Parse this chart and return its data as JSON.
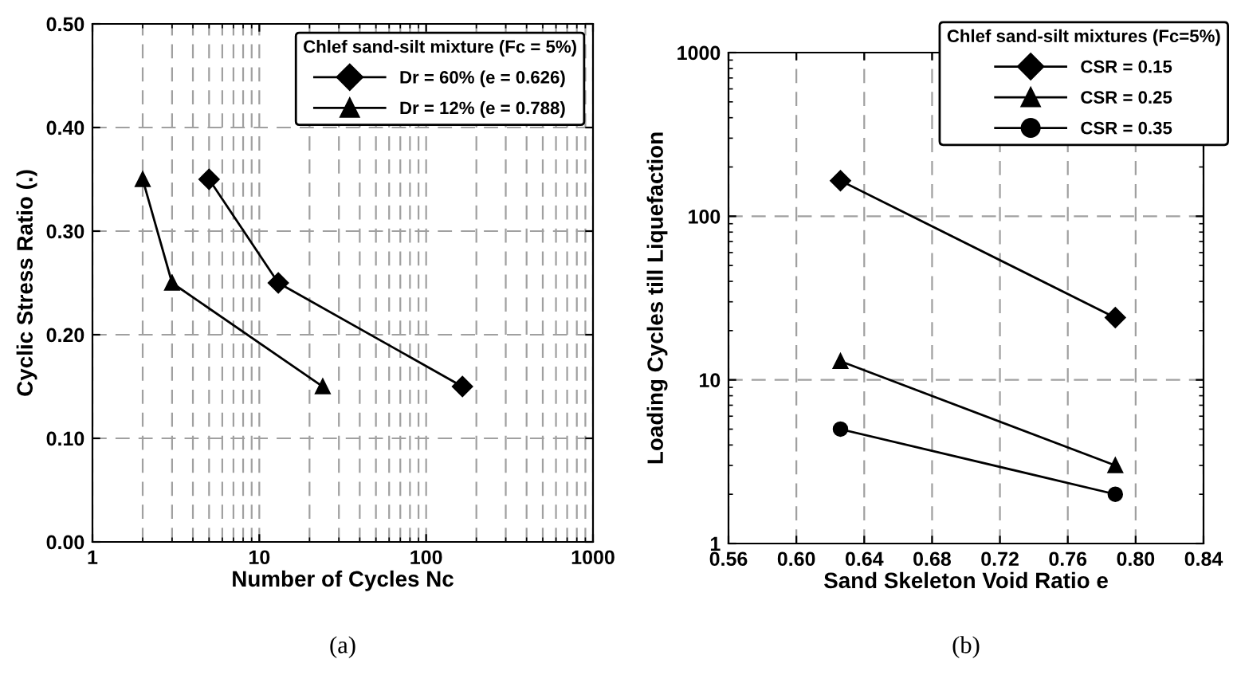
{
  "chart_data": [
    {
      "type": "line",
      "xlabel": "Number of Cycles Nc",
      "ylabel": "Cyclic Stress Ratio (.)",
      "legend_title": "Chlef sand-silt mixture (Fc = 5%)",
      "log": "x",
      "grid": true,
      "legend": "top right",
      "line_style": "solid",
      "xlim": [
        1,
        1000
      ],
      "xticks": [
        1,
        10,
        100,
        1000
      ],
      "ylim": [
        0,
        0.5
      ],
      "yticks": [
        {
          "value": 0,
          "label": "0.00"
        },
        {
          "value": 0.1,
          "label": "0.10"
        },
        {
          "value": 0.2,
          "label": "0.20"
        },
        {
          "value": 0.3,
          "label": "0.30"
        },
        {
          "value": 0.4,
          "label": "0.40"
        },
        {
          "value": 0.5,
          "label": "0.50"
        }
      ],
      "series": [
        {
          "name": "Dr = 60% (e = 0.626)",
          "color": "#000000",
          "marker": "diamond",
          "x": [
            5,
            13,
            165
          ],
          "values": [
            0.35,
            0.25,
            0.15
          ]
        },
        {
          "name": "Dr = 12% (e = 0.788)",
          "color": "#000000",
          "marker": "triangle",
          "x": [
            2,
            3,
            24
          ],
          "values": [
            0.35,
            0.25,
            0.15
          ]
        }
      ],
      "annotations": [
        "(a)"
      ]
    },
    {
      "type": "line",
      "xlabel": "Sand Skeleton Void Ratio e",
      "ylabel": "Loading Cycles till Liquefaction",
      "legend_title": "Chlef sand-silt mixtures (Fc=5%)",
      "log": "y",
      "grid": true,
      "legend": "top right",
      "line_style": "solid",
      "xlim": [
        0.56,
        0.84
      ],
      "xticks": [
        0.56,
        {
          "value": 0.6,
          "label": "0.60"
        },
        0.64,
        0.68,
        0.72,
        0.76,
        {
          "value": 0.8,
          "label": "0.80"
        },
        0.84
      ],
      "ylim": [
        1,
        1000
      ],
      "yticks": [
        1,
        10,
        100,
        1000
      ],
      "series": [
        {
          "name": "CSR = 0.15",
          "color": "#000000",
          "marker": "diamond",
          "x": [
            0.626,
            0.788
          ],
          "values": [
            165,
            24
          ]
        },
        {
          "name": "CSR = 0.25",
          "color": "#000000",
          "marker": "triangle",
          "x": [
            0.626,
            0.788
          ],
          "values": [
            13,
            3
          ]
        },
        {
          "name": "CSR = 0.35",
          "color": "#000000",
          "marker": "circle",
          "x": [
            0.626,
            0.788
          ],
          "values": [
            5,
            2
          ]
        }
      ],
      "annotations": [
        "(b)"
      ]
    }
  ]
}
